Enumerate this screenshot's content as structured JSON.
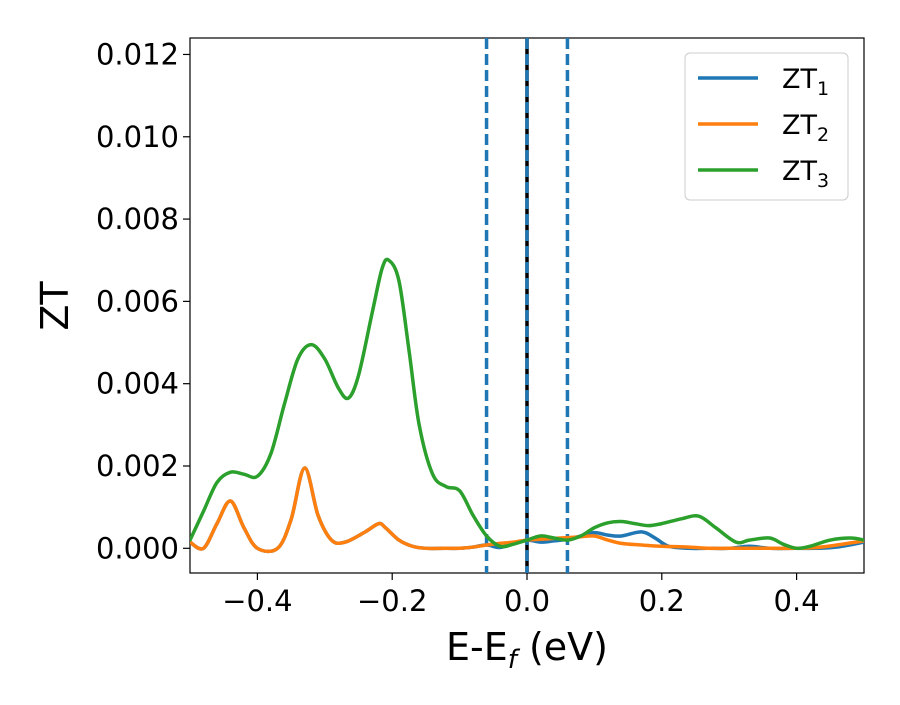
{
  "chart_data": {
    "type": "line",
    "title": "",
    "xlabel": {
      "main": "E-E",
      "sub": "f",
      "suffix": " (eV)"
    },
    "ylabel": "ZT",
    "xlim": [
      -0.5,
      0.5
    ],
    "ylim": [
      -0.0006,
      0.0124
    ],
    "x_ticks": [
      -0.4,
      -0.2,
      0.0,
      0.2,
      0.4
    ],
    "x_tick_labels": [
      "−0.4",
      "−0.2",
      "0.0",
      "0.2",
      "0.4"
    ],
    "y_ticks": [
      0.0,
      0.002,
      0.004,
      0.006,
      0.008,
      0.01,
      0.012
    ],
    "y_tick_labels": [
      "0.000",
      "0.002",
      "0.004",
      "0.006",
      "0.008",
      "0.010",
      "0.012"
    ],
    "grid": false,
    "legend_position": "top-right",
    "vertical_lines": [
      {
        "x": -0.06,
        "style": "dashed",
        "color": "#1f77b4"
      },
      {
        "x": 0.0,
        "style": "solid",
        "color": "#000000"
      },
      {
        "x": 0.0,
        "style": "dashed",
        "color": "#1f77b4"
      },
      {
        "x": 0.06,
        "style": "dashed",
        "color": "#1f77b4"
      }
    ],
    "series": [
      {
        "name": "ZT",
        "name_sub": "1",
        "color": "#1f77b4",
        "x": [
          -0.5,
          -0.48,
          -0.46,
          -0.44,
          -0.42,
          -0.4,
          -0.37,
          -0.35,
          -0.33,
          -0.31,
          -0.29,
          -0.27,
          -0.24,
          -0.22,
          -0.21,
          -0.19,
          -0.17,
          -0.15,
          -0.12,
          -0.1,
          -0.08,
          -0.06,
          -0.04,
          -0.02,
          0.0,
          0.02,
          0.04,
          0.06,
          0.08,
          0.1,
          0.12,
          0.14,
          0.17,
          0.19,
          0.21,
          0.24,
          0.27,
          0.3,
          0.33,
          0.36,
          0.4,
          0.43,
          0.46,
          0.5
        ],
        "y": [
          0.00015,
          0.0,
          0.0006,
          0.00115,
          0.0005,
          0.0,
          0.0,
          0.0007,
          0.00195,
          0.0008,
          0.0002,
          0.00015,
          0.0004,
          0.0006,
          0.0005,
          0.0002,
          5e-05,
          0.0,
          0.0,
          0.0,
          3e-05,
          8e-05,
          2e-05,
          0.00012,
          0.0002,
          0.00015,
          0.00018,
          0.00022,
          0.0003,
          0.00038,
          0.00032,
          0.0003,
          0.0004,
          0.00025,
          5e-05,
          0.0,
          0.0,
          0.0,
          5e-05,
          0.0,
          0.0,
          0.0,
          3e-05,
          0.00015
        ]
      },
      {
        "name": "ZT",
        "name_sub": "2",
        "color": "#ff7f0e",
        "x": [
          -0.5,
          -0.48,
          -0.46,
          -0.44,
          -0.42,
          -0.4,
          -0.37,
          -0.35,
          -0.33,
          -0.31,
          -0.29,
          -0.27,
          -0.24,
          -0.22,
          -0.21,
          -0.19,
          -0.17,
          -0.15,
          -0.12,
          -0.1,
          -0.08,
          -0.06,
          -0.04,
          -0.02,
          0.0,
          0.02,
          0.04,
          0.06,
          0.08,
          0.1,
          0.12,
          0.14,
          0.17,
          0.2,
          0.24,
          0.27,
          0.3,
          0.33,
          0.36,
          0.4,
          0.43,
          0.46,
          0.5
        ],
        "y": [
          0.00015,
          0.0,
          0.0006,
          0.00115,
          0.0005,
          0.0,
          0.0,
          0.0007,
          0.00195,
          0.0008,
          0.0002,
          0.00015,
          0.0004,
          0.0006,
          0.0005,
          0.0002,
          5e-05,
          0.0,
          0.0,
          0.0,
          3e-05,
          8e-05,
          0.00012,
          0.00015,
          0.0002,
          0.00022,
          0.00024,
          0.00026,
          0.00028,
          0.0003,
          0.0002,
          0.00012,
          8e-05,
          5e-05,
          3e-05,
          0.0,
          0.0,
          0.0,
          0.0,
          0.0,
          2e-05,
          8e-05,
          0.00018
        ]
      },
      {
        "name": "ZT",
        "name_sub": "3",
        "color": "#2ca02c",
        "x": [
          -0.5,
          -0.48,
          -0.46,
          -0.44,
          -0.42,
          -0.4,
          -0.38,
          -0.36,
          -0.34,
          -0.32,
          -0.3,
          -0.28,
          -0.265,
          -0.25,
          -0.23,
          -0.215,
          -0.205,
          -0.19,
          -0.175,
          -0.16,
          -0.14,
          -0.12,
          -0.1,
          -0.08,
          -0.06,
          -0.04,
          -0.02,
          0.0,
          0.02,
          0.04,
          0.06,
          0.08,
          0.1,
          0.12,
          0.14,
          0.16,
          0.18,
          0.2,
          0.23,
          0.255,
          0.28,
          0.31,
          0.33,
          0.36,
          0.38,
          0.4,
          0.42,
          0.45,
          0.48,
          0.5
        ],
        "y": [
          0.0002,
          0.0009,
          0.0016,
          0.00185,
          0.0018,
          0.00175,
          0.0023,
          0.0035,
          0.0046,
          0.00495,
          0.0046,
          0.0039,
          0.00365,
          0.0042,
          0.0057,
          0.0068,
          0.007,
          0.0065,
          0.0048,
          0.003,
          0.0018,
          0.0015,
          0.0014,
          0.0008,
          0.0003,
          5e-05,
          0.0001,
          0.0002,
          0.0003,
          0.00025,
          0.0002,
          0.0003,
          0.0005,
          0.00062,
          0.00065,
          0.0006,
          0.00055,
          0.0006,
          0.00072,
          0.00078,
          0.0005,
          0.00015,
          0.0002,
          0.00025,
          0.0001,
          0.0,
          5e-05,
          0.0002,
          0.00025,
          0.0002
        ]
      }
    ]
  }
}
